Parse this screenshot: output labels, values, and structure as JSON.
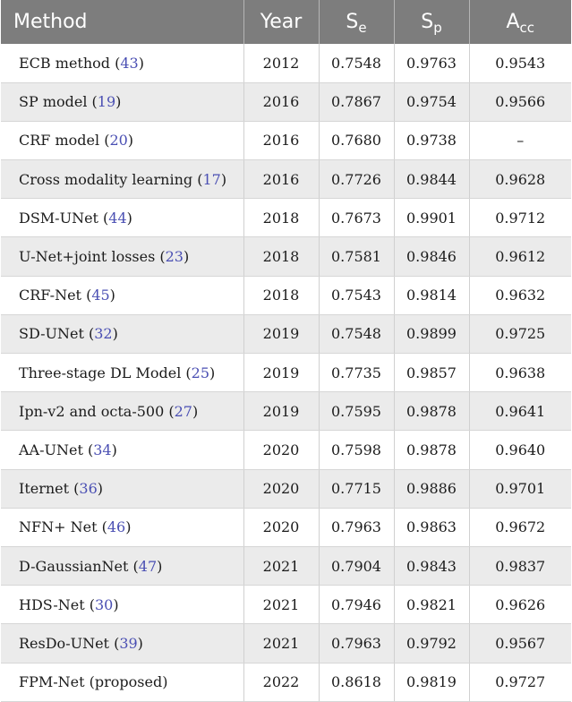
{
  "headers": {
    "method": "Method",
    "year": "Year",
    "se_main": "S",
    "se_sub": "e",
    "sp_main": "S",
    "sp_sub": "p",
    "acc_main": "A",
    "acc_sub": "cc"
  },
  "rows": [
    {
      "name": "ECB method",
      "ref": "43",
      "year": "2012",
      "se": "0.7548",
      "sp": "0.9763",
      "acc": "0.9543"
    },
    {
      "name": "SP model",
      "ref": "19",
      "year": "2016",
      "se": "0.7867",
      "sp": "0.9754",
      "acc": "0.9566"
    },
    {
      "name": "CRF model",
      "ref": "20",
      "year": "2016",
      "se": "0.7680",
      "sp": "0.9738",
      "acc": "–"
    },
    {
      "name": "Cross modality learning",
      "ref": "17",
      "year": "2016",
      "se": "0.7726",
      "sp": "0.9844",
      "acc": "0.9628"
    },
    {
      "name": "DSM-UNet",
      "ref": "44",
      "year": "2018",
      "se": "0.7673",
      "sp": "0.9901",
      "acc": "0.9712"
    },
    {
      "name": "U-Net+joint losses",
      "ref": "23",
      "year": "2018",
      "se": "0.7581",
      "sp": "0.9846",
      "acc": "0.9612"
    },
    {
      "name": "CRF-Net",
      "ref": "45",
      "year": "2018",
      "se": "0.7543",
      "sp": "0.9814",
      "acc": "0.9632"
    },
    {
      "name": "SD-UNet",
      "ref": "32",
      "year": "2019",
      "se": "0.7548",
      "sp": "0.9899",
      "acc": "0.9725"
    },
    {
      "name": "Three-stage DL Model",
      "ref": "25",
      "year": "2019",
      "se": "0.7735",
      "sp": "0.9857",
      "acc": "0.9638"
    },
    {
      "name": "Ipn-v2 and octa-500",
      "ref": "27",
      "year": "2019",
      "se": "0.7595",
      "sp": "0.9878",
      "acc": "0.9641"
    },
    {
      "name": "AA-UNet",
      "ref": "34",
      "year": "2020",
      "se": "0.7598",
      "sp": "0.9878",
      "acc": "0.9640"
    },
    {
      "name": "Iternet",
      "ref": "36",
      "year": "2020",
      "se": "0.7715",
      "sp": "0.9886",
      "acc": "0.9701"
    },
    {
      "name": "NFN+ Net",
      "ref": "46",
      "year": "2020",
      "se": "0.7963",
      "sp": "0.9863",
      "acc": "0.9672"
    },
    {
      "name": "D-GaussianNet",
      "ref": "47",
      "year": "2021",
      "se": "0.7904",
      "sp": "0.9843",
      "acc": "0.9837"
    },
    {
      "name": "HDS-Net",
      "ref": "30",
      "year": "2021",
      "se": "0.7946",
      "sp": "0.9821",
      "acc": "0.9626"
    },
    {
      "name": "ResDo-UNet",
      "ref": "39",
      "year": "2021",
      "se": "0.7963",
      "sp": "0.9792",
      "acc": "0.9567"
    },
    {
      "name": "FPM-Net (proposed)",
      "ref": "",
      "year": "2022",
      "se": "0.8618",
      "sp": "0.9819",
      "acc": "0.9727"
    }
  ],
  "colors": {
    "header_bg": "#7d7d7d",
    "header_text": "#ffffff",
    "row_alt_bg": "#ebebeb",
    "ref_link": "#4a4fb3"
  }
}
